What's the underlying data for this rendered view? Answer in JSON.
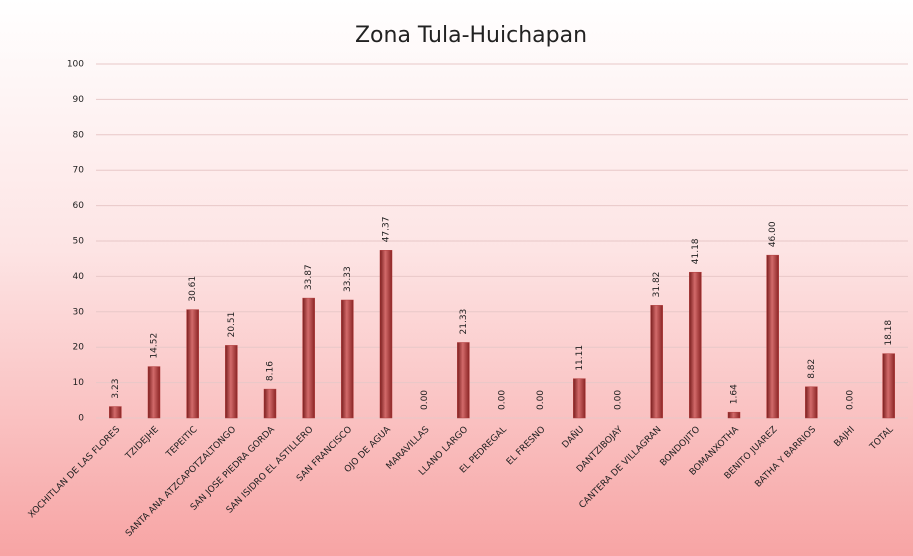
{
  "chart_data": {
    "type": "bar",
    "title": "Zona Tula-Huichapan",
    "categories": [
      "XOCHITLAN DE LAS FLORES",
      "TZIDEJHE",
      "TEPEITIC",
      "SANTA ANA ATZCAPOTZALTONGO",
      "SAN JOSE PIEDRA GORDA",
      "SAN ISIDRO EL ASTILLERO",
      "SAN FRANCISCO",
      "OJO DE AGUA",
      "MARAVILLAS",
      "LLANO LARGO",
      "EL PEDREGAL",
      "EL FRESNO",
      "DAÑU",
      "DANTZIBOJAY",
      "CANTERA DE VILLAGRAN",
      "BONDOJITO",
      "BOMANXOTHA",
      "BENITO JUAREZ",
      "BATHA Y BARRIOS",
      "BAJHI",
      "TOTAL"
    ],
    "values": [
      3.23,
      14.52,
      30.61,
      20.51,
      8.16,
      33.87,
      33.33,
      47.37,
      0,
      21.33,
      0,
      0,
      11.11,
      0,
      31.82,
      41.18,
      1.64,
      46,
      8.82,
      0,
      18.18
    ],
    "value_labels": [
      "3.23",
      "14.52",
      "30.61",
      "20.51",
      "8.16",
      "33.87",
      "33.33",
      "47.37",
      "0.00",
      "21.33",
      "0.00",
      "0.00",
      "11.11",
      "0.00",
      "31.82",
      "41.18",
      "1.64",
      "46.00",
      "8.82",
      "0.00",
      "18.18"
    ],
    "color": "#b03a3a",
    "ylim": [
      0,
      100
    ],
    "yticks": [
      0,
      10,
      20,
      30,
      40,
      50,
      60,
      70,
      80,
      90,
      100
    ],
    "grid": true
  }
}
